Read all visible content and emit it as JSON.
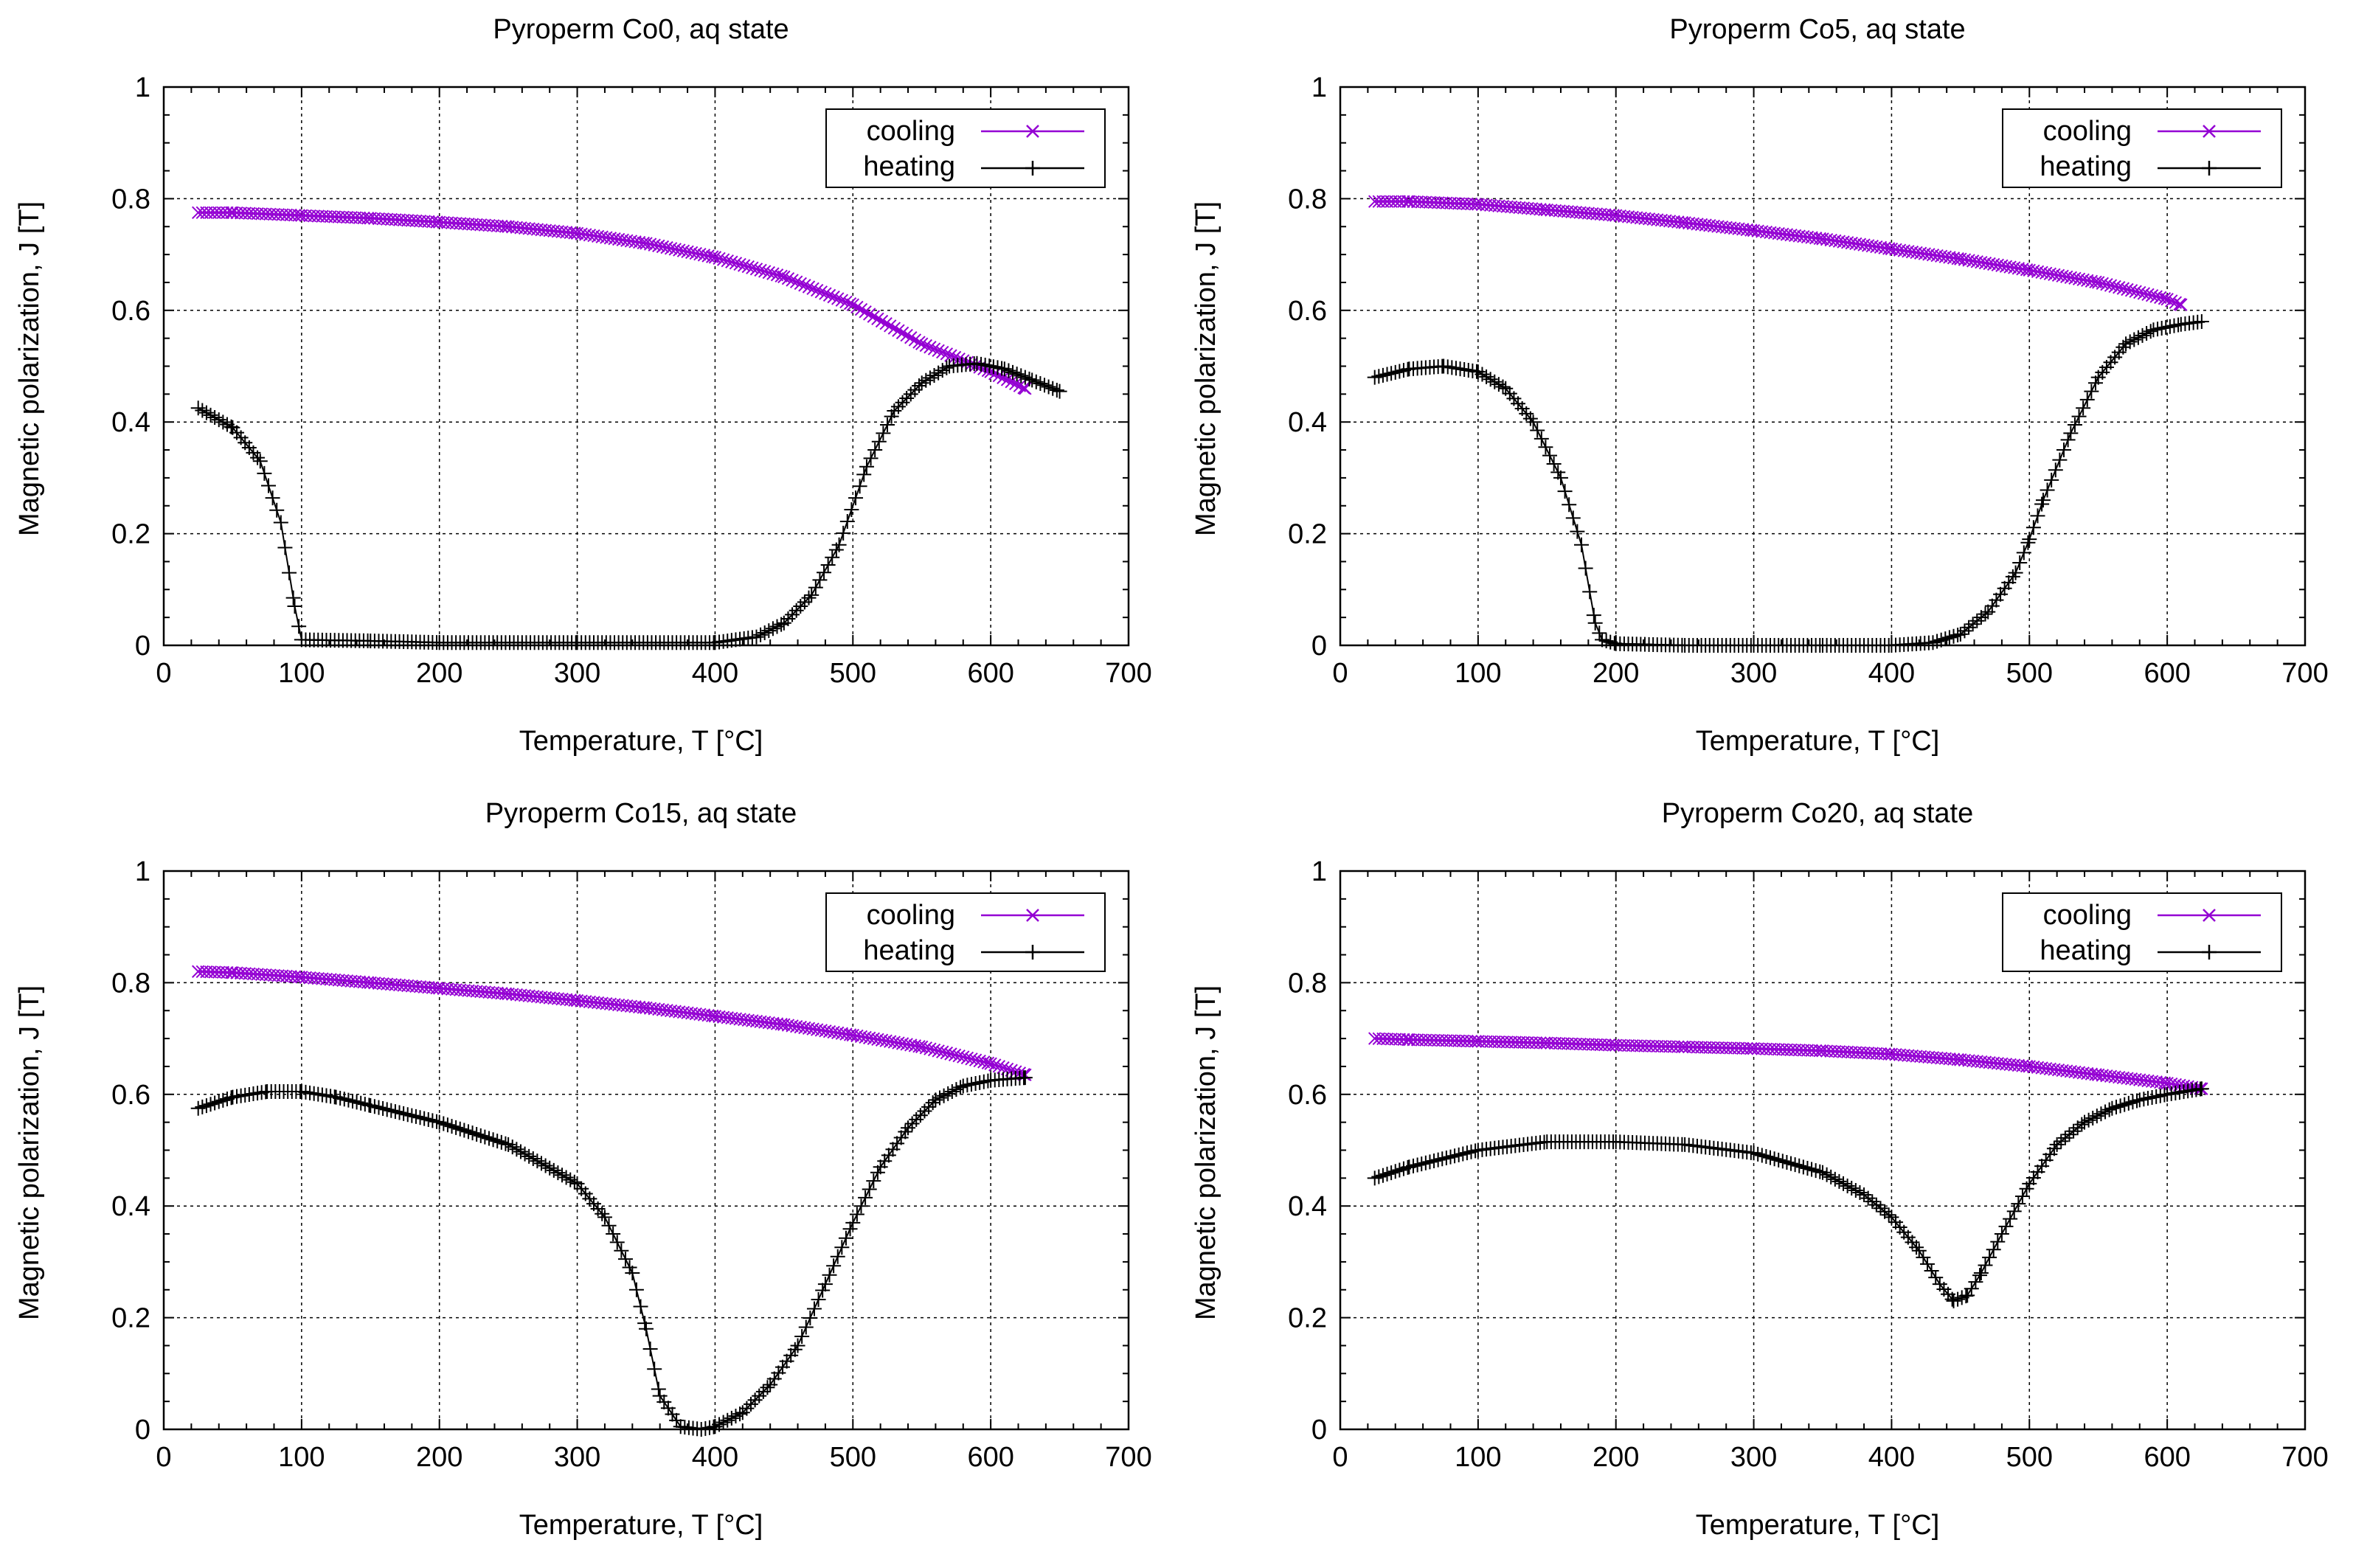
{
  "colors": {
    "cooling": "#9400d3",
    "heating": "#000000",
    "grid": "#000000"
  },
  "chart_data": [
    {
      "type": "scatter",
      "title": "Pyroperm Co0, aq state",
      "xlabel": "Temperature, T [°C]",
      "ylabel": "Magnetic polarization, J [T]",
      "xlim": [
        0,
        700
      ],
      "ylim": [
        0,
        1
      ],
      "xticks": [
        "0",
        "100",
        "200",
        "300",
        "400",
        "500",
        "600",
        "700"
      ],
      "yticks": [
        "0",
        "0.2",
        "0.4",
        "0.6",
        "0.8",
        "1"
      ],
      "grid": true,
      "legend": "top-right",
      "series": [
        {
          "name": "cooling",
          "marker": "x",
          "x": [
            25,
            50,
            100,
            150,
            200,
            250,
            300,
            350,
            400,
            450,
            500,
            550,
            600,
            625
          ],
          "y": [
            0.775,
            0.775,
            0.77,
            0.765,
            0.758,
            0.75,
            0.738,
            0.72,
            0.695,
            0.66,
            0.61,
            0.54,
            0.49,
            0.46
          ]
        },
        {
          "name": "heating",
          "marker": "+",
          "x": [
            25,
            50,
            70,
            85,
            95,
            100,
            150,
            200,
            300,
            400,
            430,
            450,
            470,
            490,
            510,
            530,
            550,
            570,
            590,
            610,
            630,
            650
          ],
          "y": [
            0.425,
            0.39,
            0.33,
            0.22,
            0.07,
            0.01,
            0.008,
            0.005,
            0.005,
            0.005,
            0.015,
            0.04,
            0.09,
            0.18,
            0.32,
            0.42,
            0.47,
            0.5,
            0.505,
            0.495,
            0.475,
            0.455
          ]
        }
      ]
    },
    {
      "type": "scatter",
      "title": "Pyroperm Co5, aq state",
      "xlabel": "Temperature, T [°C]",
      "ylabel": "Magnetic polarization, J [T]",
      "xlim": [
        0,
        700
      ],
      "ylim": [
        0,
        1
      ],
      "xticks": [
        "0",
        "100",
        "200",
        "300",
        "400",
        "500",
        "600",
        "700"
      ],
      "yticks": [
        "0",
        "0.2",
        "0.4",
        "0.6",
        "0.8",
        "1"
      ],
      "grid": true,
      "legend": "top-right",
      "series": [
        {
          "name": "cooling",
          "marker": "x",
          "x": [
            25,
            50,
            100,
            150,
            200,
            250,
            300,
            350,
            400,
            450,
            500,
            550,
            600,
            610
          ],
          "y": [
            0.795,
            0.795,
            0.79,
            0.78,
            0.77,
            0.757,
            0.743,
            0.728,
            0.71,
            0.692,
            0.672,
            0.65,
            0.62,
            0.61
          ]
        },
        {
          "name": "heating",
          "marker": "+",
          "x": [
            25,
            50,
            75,
            100,
            120,
            140,
            160,
            175,
            185,
            190,
            200,
            250,
            300,
            350,
            400,
            430,
            450,
            470,
            490,
            500,
            510,
            530,
            550,
            570,
            590,
            610,
            625
          ],
          "y": [
            0.48,
            0.495,
            0.5,
            0.49,
            0.46,
            0.4,
            0.3,
            0.18,
            0.04,
            0.01,
            0.003,
            0.0,
            0.0,
            0.0,
            0.0,
            0.005,
            0.02,
            0.06,
            0.13,
            0.19,
            0.26,
            0.38,
            0.48,
            0.54,
            0.565,
            0.575,
            0.58
          ]
        }
      ]
    },
    {
      "type": "scatter",
      "title": "Pyroperm Co15, aq state",
      "xlabel": "Temperature, T [°C]",
      "ylabel": "Magnetic polarization, J [T]",
      "xlim": [
        0,
        700
      ],
      "ylim": [
        0,
        1
      ],
      "xticks": [
        "0",
        "100",
        "200",
        "300",
        "400",
        "500",
        "600",
        "700"
      ],
      "yticks": [
        "0",
        "0.2",
        "0.4",
        "0.6",
        "0.8",
        "1"
      ],
      "grid": true,
      "legend": "top-right",
      "series": [
        {
          "name": "cooling",
          "marker": "x",
          "x": [
            25,
            50,
            100,
            150,
            200,
            250,
            300,
            350,
            400,
            450,
            500,
            550,
            600,
            625
          ],
          "y": [
            0.82,
            0.818,
            0.81,
            0.8,
            0.79,
            0.78,
            0.768,
            0.755,
            0.74,
            0.725,
            0.706,
            0.685,
            0.655,
            0.635
          ]
        },
        {
          "name": "heating",
          "marker": "+",
          "x": [
            25,
            50,
            75,
            100,
            125,
            150,
            200,
            250,
            300,
            320,
            340,
            350,
            360,
            375,
            390,
            400,
            420,
            440,
            460,
            480,
            500,
            520,
            540,
            560,
            580,
            600,
            625
          ],
          "y": [
            0.575,
            0.595,
            0.605,
            0.605,
            0.595,
            0.58,
            0.55,
            0.51,
            0.44,
            0.38,
            0.28,
            0.18,
            0.06,
            0.005,
            0.0,
            0.005,
            0.03,
            0.08,
            0.15,
            0.26,
            0.37,
            0.47,
            0.54,
            0.59,
            0.615,
            0.625,
            0.63
          ]
        }
      ]
    },
    {
      "type": "scatter",
      "title": "Pyroperm Co20, aq state",
      "xlabel": "Temperature, T [°C]",
      "ylabel": "Magnetic polarization, J [T]",
      "xlim": [
        0,
        700
      ],
      "ylim": [
        0,
        1
      ],
      "xticks": [
        "0",
        "100",
        "200",
        "300",
        "400",
        "500",
        "600",
        "700"
      ],
      "yticks": [
        "0",
        "0.2",
        "0.4",
        "0.6",
        "0.8",
        "1"
      ],
      "grid": true,
      "legend": "top-right",
      "series": [
        {
          "name": "cooling",
          "marker": "x",
          "x": [
            25,
            50,
            100,
            150,
            200,
            250,
            300,
            350,
            400,
            450,
            500,
            550,
            600,
            625
          ],
          "y": [
            0.7,
            0.698,
            0.695,
            0.692,
            0.688,
            0.685,
            0.682,
            0.678,
            0.672,
            0.662,
            0.65,
            0.635,
            0.62,
            0.61
          ]
        },
        {
          "name": "heating",
          "marker": "+",
          "x": [
            25,
            50,
            100,
            150,
            200,
            250,
            300,
            350,
            380,
            400,
            420,
            435,
            445,
            455,
            465,
            480,
            500,
            520,
            540,
            560,
            580,
            600,
            625
          ],
          "y": [
            0.45,
            0.47,
            0.5,
            0.515,
            0.515,
            0.51,
            0.495,
            0.46,
            0.42,
            0.38,
            0.32,
            0.26,
            0.23,
            0.24,
            0.28,
            0.35,
            0.44,
            0.51,
            0.55,
            0.575,
            0.59,
            0.6,
            0.61
          ]
        }
      ]
    }
  ]
}
